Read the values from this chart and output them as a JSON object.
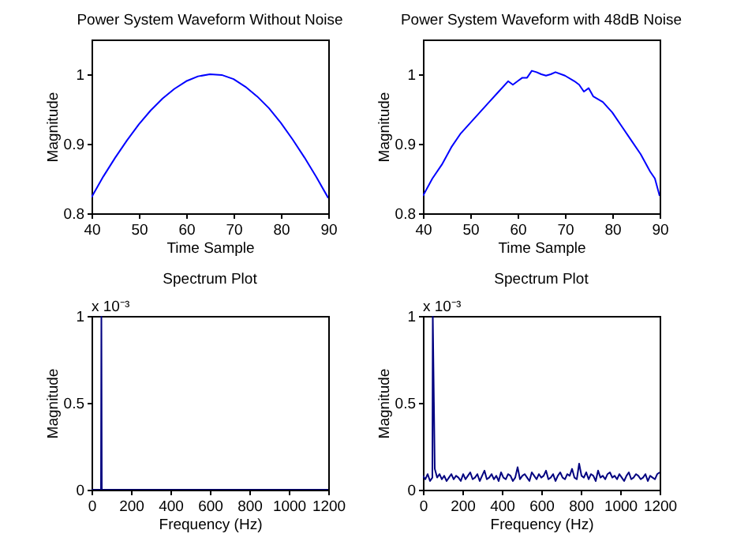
{
  "chart_data": [
    {
      "type": "line",
      "title": "Power System Waveform Without Noise",
      "xlabel": "Time Sample",
      "ylabel": "Magnitude",
      "xlim": [
        40,
        90
      ],
      "xticks": [
        40,
        50,
        60,
        70,
        80,
        90
      ],
      "ylim": [
        0.8,
        1.05
      ],
      "yticks": [
        0.8,
        0.9,
        1
      ],
      "series": [
        {
          "color": "#0000ff",
          "x": [
            40,
            42.5,
            45,
            47.5,
            50,
            52.5,
            55,
            57.5,
            60,
            62.5,
            65,
            67.5,
            70,
            72.5,
            75,
            77.5,
            80,
            82.5,
            85,
            87.5,
            90
          ],
          "values": [
            0.823,
            0.853,
            0.88,
            0.905,
            0.928,
            0.948,
            0.965,
            0.979,
            0.99,
            0.997,
            1.0,
            0.999,
            0.993,
            0.982,
            0.968,
            0.951,
            0.93,
            0.906,
            0.88,
            0.852,
            0.822
          ]
        }
      ]
    },
    {
      "type": "line",
      "title": "Power System Waveform with 48dB Noise",
      "xlabel": "Time Sample",
      "ylabel": "Magnitude",
      "xlim": [
        40,
        90
      ],
      "xticks": [
        40,
        50,
        60,
        70,
        80,
        90
      ],
      "ylim": [
        0.8,
        1.05
      ],
      "yticks": [
        0.8,
        0.9,
        1
      ],
      "series": [
        {
          "color": "#0000ff",
          "x": [
            40,
            42,
            44,
            46,
            48,
            50,
            52,
            54,
            56,
            58,
            59,
            60,
            61,
            62,
            63,
            64,
            65,
            66,
            67,
            68,
            70,
            72,
            73,
            74,
            75,
            76,
            78,
            80,
            82,
            84,
            86,
            88,
            89,
            90
          ],
          "values": [
            0.825,
            0.85,
            0.87,
            0.895,
            0.915,
            0.93,
            0.945,
            0.96,
            0.975,
            0.99,
            0.985,
            0.99,
            0.995,
            0.995,
            1.005,
            1.003,
            1.0,
            0.998,
            1.0,
            1.003,
            0.998,
            0.99,
            0.985,
            0.975,
            0.98,
            0.968,
            0.96,
            0.945,
            0.925,
            0.905,
            0.885,
            0.86,
            0.85,
            0.825
          ]
        }
      ]
    },
    {
      "type": "line",
      "title": "Spectrum Plot",
      "xlabel": "Frequency (Hz)",
      "ylabel": "Magnitude",
      "xlim": [
        0,
        1200
      ],
      "xticks": [
        0,
        200,
        400,
        600,
        800,
        1000,
        1200
      ],
      "ylim": [
        0,
        1
      ],
      "yticks": [
        0,
        0.5,
        1
      ],
      "annotations": [
        "x 10⁻³"
      ],
      "series": [
        {
          "color": "#000080",
          "x": [
            0,
            48,
            50,
            52,
            1200
          ],
          "values": [
            0,
            0,
            1,
            0,
            0
          ]
        }
      ]
    },
    {
      "type": "line",
      "title": "Spectrum Plot",
      "xlabel": "Frequency (Hz)",
      "ylabel": "Magnitude",
      "xlim": [
        0,
        1200
      ],
      "xticks": [
        0,
        200,
        400,
        600,
        800,
        1000,
        1200
      ],
      "ylim": [
        0,
        1
      ],
      "yticks": [
        0,
        0.5,
        1
      ],
      "annotations": [
        "x 10⁻³"
      ],
      "series": [
        {
          "color": "#000080",
          "x": [
            0,
            12,
            24,
            36,
            48,
            50,
            60,
            72,
            84,
            96,
            108,
            120,
            132,
            144,
            156,
            168,
            180,
            192,
            204,
            216,
            228,
            240,
            252,
            264,
            276,
            288,
            300,
            312,
            324,
            336,
            348,
            360,
            372,
            384,
            396,
            408,
            420,
            432,
            444,
            456,
            468,
            480,
            492,
            504,
            516,
            528,
            540,
            552,
            564,
            576,
            588,
            600,
            612,
            624,
            636,
            648,
            660,
            672,
            684,
            696,
            708,
            720,
            732,
            744,
            756,
            768,
            780,
            792,
            804,
            816,
            828,
            840,
            852,
            864,
            876,
            888,
            900,
            912,
            924,
            936,
            948,
            960,
            972,
            984,
            996,
            1008,
            1020,
            1032,
            1044,
            1056,
            1068,
            1080,
            1092,
            1104,
            1116,
            1128,
            1140,
            1152,
            1164,
            1176,
            1188,
            1200
          ],
          "values": [
            0.08,
            0.06,
            0.09,
            0.05,
            0.07,
            1.0,
            0.12,
            0.07,
            0.09,
            0.06,
            0.08,
            0.05,
            0.07,
            0.09,
            0.06,
            0.08,
            0.07,
            0.05,
            0.09,
            0.06,
            0.08,
            0.1,
            0.06,
            0.07,
            0.09,
            0.05,
            0.08,
            0.11,
            0.06,
            0.07,
            0.09,
            0.06,
            0.08,
            0.05,
            0.1,
            0.07,
            0.06,
            0.09,
            0.08,
            0.05,
            0.07,
            0.13,
            0.06,
            0.08,
            0.09,
            0.07,
            0.05,
            0.1,
            0.08,
            0.06,
            0.09,
            0.07,
            0.08,
            0.11,
            0.06,
            0.07,
            0.09,
            0.05,
            0.08,
            0.1,
            0.07,
            0.06,
            0.09,
            0.08,
            0.12,
            0.07,
            0.06,
            0.15,
            0.08,
            0.07,
            0.1,
            0.06,
            0.09,
            0.08,
            0.05,
            0.11,
            0.07,
            0.08,
            0.06,
            0.09,
            0.1,
            0.07,
            0.08,
            0.06,
            0.09,
            0.07,
            0.05,
            0.08,
            0.1,
            0.06,
            0.07,
            0.09,
            0.08,
            0.06,
            0.07,
            0.09,
            0.05,
            0.08,
            0.07,
            0.06,
            0.09,
            0.1
          ]
        }
      ]
    }
  ]
}
